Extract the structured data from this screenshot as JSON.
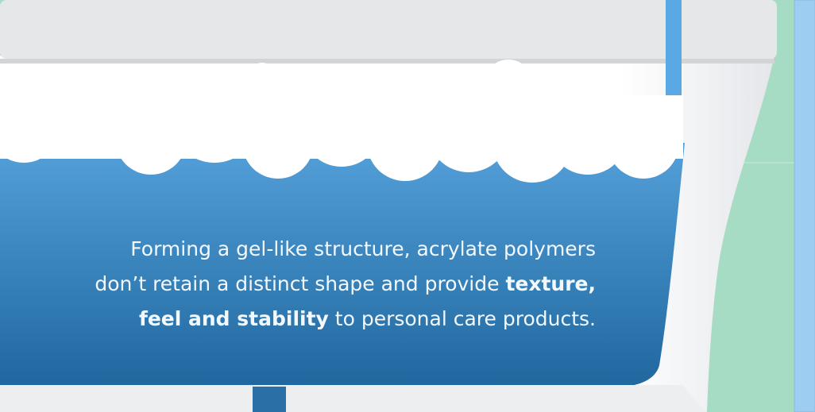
{
  "caption": {
    "lines": [
      [
        {
          "text": "Forming a gel-like structure, acrylate polymers",
          "bold": false
        }
      ],
      [
        {
          "text": "don’t retain a distinct shape and provide ",
          "bold": false
        },
        {
          "text": "texture,",
          "bold": true
        }
      ],
      [
        {
          "text": "feel and stability",
          "bold": true
        },
        {
          "text": " to personal care products.",
          "bold": false
        }
      ]
    ]
  }
}
